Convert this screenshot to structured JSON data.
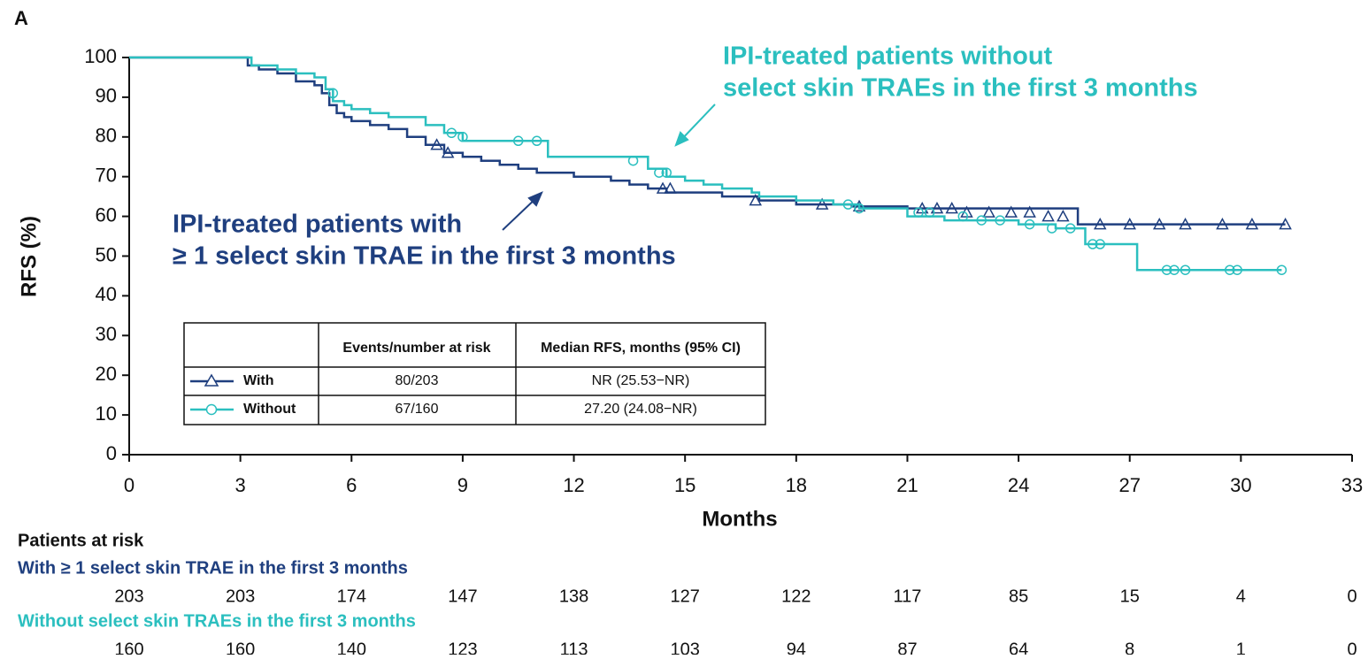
{
  "chart_data": {
    "type": "km",
    "panel_label": "A",
    "ylabel": "RFS (%)",
    "xlabel": "Months",
    "xlim": [
      0,
      33
    ],
    "ylim": [
      0,
      100
    ],
    "xticks": [
      0,
      3,
      6,
      9,
      12,
      15,
      18,
      21,
      24,
      27,
      30,
      33
    ],
    "yticks": [
      0,
      10,
      20,
      30,
      40,
      50,
      60,
      70,
      80,
      90,
      100
    ],
    "annotations": [
      {
        "lines": [
          "IPI-treated patients without",
          "select skin TRAEs in the first 3 months"
        ],
        "color": "#2bbfbf"
      },
      {
        "lines": [
          "IPI-treated patients with",
          "≥ 1 select skin TRAE in the first 3 months"
        ],
        "color": "#1f3f7f"
      }
    ],
    "series": [
      {
        "name": "With",
        "color": "#1f3f7f",
        "marker": "triangle",
        "x": [
          0,
          3,
          3.2,
          3.5,
          4,
          4.5,
          5,
          5.2,
          5.4,
          5.6,
          5.8,
          6,
          6.5,
          7,
          7.5,
          8,
          8.5,
          9,
          9.5,
          10,
          10.5,
          11,
          12,
          13,
          13.5,
          14,
          14.5,
          15,
          16,
          17,
          18,
          19.5,
          21,
          25.6,
          31.2
        ],
        "values": [
          100,
          100,
          98,
          97,
          96,
          94,
          93,
          91,
          88,
          86,
          85,
          84,
          83,
          82,
          80,
          78,
          76,
          75,
          74,
          73,
          72,
          71,
          70,
          69,
          68,
          67,
          66,
          66,
          65,
          64,
          63,
          62.5,
          62,
          58,
          58
        ],
        "censor_x": [
          8.3,
          8.6,
          14.4,
          14.6,
          16.9,
          18.7,
          19.7,
          21.4,
          21.8,
          22.2,
          22.6,
          23.2,
          23.8,
          24.3,
          24.8,
          25.2,
          26.2,
          27,
          27.8,
          28.5,
          29.5,
          30.3,
          31.2
        ],
        "censor_values": [
          78,
          76,
          67,
          67,
          64,
          63,
          62.5,
          62,
          62,
          62,
          61,
          61,
          61,
          61,
          60,
          60,
          58,
          58,
          58,
          58,
          58,
          58,
          58
        ],
        "events": "80/203",
        "median": "NR (25.53−NR)",
        "risk_label": "With ≥ 1 select skin TRAE in the first 3 months",
        "at_risk": [
          203,
          203,
          174,
          147,
          138,
          127,
          122,
          117,
          85,
          15,
          4,
          0
        ]
      },
      {
        "name": "Without",
        "color": "#2bbfbf",
        "marker": "circle",
        "x": [
          0,
          3,
          3.3,
          4,
          4.5,
          5,
          5.3,
          5.5,
          5.8,
          6,
          6.5,
          7,
          8,
          8.5,
          9,
          11,
          11.3,
          13.5,
          14,
          14.5,
          15,
          15.5,
          16,
          16.8,
          17,
          18,
          19,
          19.7,
          21,
          22,
          23,
          24,
          25,
          25.8,
          27.2,
          31.1
        ],
        "values": [
          100,
          100,
          98,
          97,
          96,
          95,
          92,
          89,
          88,
          87,
          86,
          85,
          83,
          81,
          79,
          79,
          75,
          75,
          72,
          70,
          69,
          68,
          67,
          66,
          65,
          64,
          63,
          62,
          60,
          59,
          59,
          58,
          57,
          53,
          46.5,
          46.5
        ],
        "censor_x": [
          5.5,
          8.7,
          9,
          10.5,
          11,
          13.6,
          14.3,
          14.5,
          19.4,
          19.7,
          21.3,
          21.6,
          22.5,
          23,
          23.5,
          24.3,
          24.9,
          25.4,
          26,
          26.2,
          28,
          28.2,
          28.5,
          29.7,
          29.9,
          31.1
        ],
        "censor_values": [
          91,
          81,
          80,
          79,
          79,
          74,
          71,
          71,
          63,
          62,
          61,
          61,
          60,
          59,
          59,
          58,
          57,
          57,
          53,
          53,
          46.5,
          46.5,
          46.5,
          46.5,
          46.5,
          46.5
        ],
        "events": "67/160",
        "median": "27.20 (24.08−NR)",
        "risk_label": "Without select skin TRAEs in the first 3 months",
        "at_risk": [
          160,
          160,
          140,
          123,
          113,
          103,
          94,
          87,
          64,
          8,
          1,
          0
        ]
      }
    ],
    "table_headers": [
      "Events/number at risk",
      "Median RFS, months (95% CI)"
    ],
    "risk_title": "Patients at risk"
  }
}
